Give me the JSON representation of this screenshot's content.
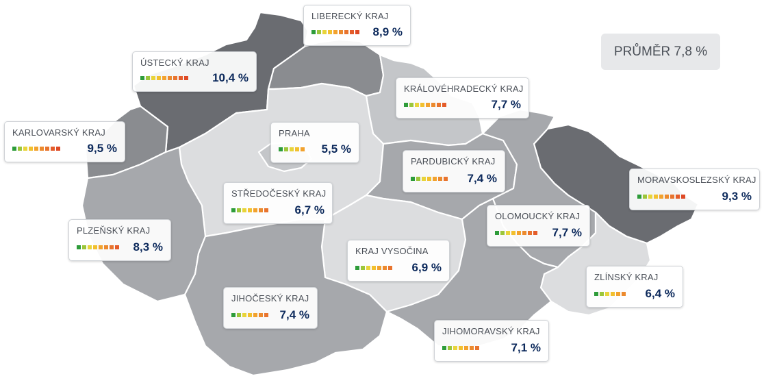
{
  "map": {
    "colors": {
      "darkest": "#6a6c71",
      "dark": "#8a8c90",
      "medium": "#a6a8ac",
      "light": "#c4c6c9",
      "lightest": "#dcdddf"
    },
    "scale_colors": [
      "#2e9c3a",
      "#9cc63a",
      "#e8d43a",
      "#f2c02e",
      "#f2a22e",
      "#ec8a2e",
      "#e8742e",
      "#e45c2a",
      "#de4a26"
    ]
  },
  "average": {
    "label": "PRŮMĚR 7,8 %"
  },
  "regions": [
    {
      "key": "liberecky",
      "name": "LIBERECKÝ KRAJ",
      "value": "8,9 %",
      "level": 9
    },
    {
      "key": "ustecky",
      "name": "ÚSTECKÝ KRAJ",
      "value": "10,4 %",
      "level": 9
    },
    {
      "key": "kralovehradecky",
      "name": "KRÁLOVÉHRADECKÝ KRAJ",
      "value": "7,7 %",
      "level": 8
    },
    {
      "key": "karlovarsky",
      "name": "KARLOVARSKÝ KRAJ",
      "value": "9,5 %",
      "level": 9
    },
    {
      "key": "praha",
      "name": "PRAHA",
      "value": "5,5 %",
      "level": 5
    },
    {
      "key": "pardubicky",
      "name": "PARDUBICKÝ KRAJ",
      "value": "7,4 %",
      "level": 7
    },
    {
      "key": "moravskoslezsky",
      "name": "MORAVSKOSLEZSKÝ KRAJ",
      "value": "9,3 %",
      "level": 9
    },
    {
      "key": "stredocesky",
      "name": "STŘEDOČESKÝ KRAJ",
      "value": "6,7 %",
      "level": 7
    },
    {
      "key": "olomoucky",
      "name": "OLOMOUCKÝ KRAJ",
      "value": "7,7 %",
      "level": 8
    },
    {
      "key": "plzensky",
      "name": "PLZEŇSKÝ KRAJ",
      "value": "8,3 %",
      "level": 8
    },
    {
      "key": "vysocina",
      "name": "KRAJ VYSOČINA",
      "value": "6,9 %",
      "level": 7
    },
    {
      "key": "zlinsky",
      "name": "ZLÍNSKÝ KRAJ",
      "value": "6,4 %",
      "level": 6
    },
    {
      "key": "jihocesky",
      "name": "JIHOČESKÝ KRAJ",
      "value": "7,4 %",
      "level": 7
    },
    {
      "key": "jihomoravsky",
      "name": "JIHOMORAVSKÝ KRAJ",
      "value": "7,1 %",
      "level": 7
    }
  ]
}
